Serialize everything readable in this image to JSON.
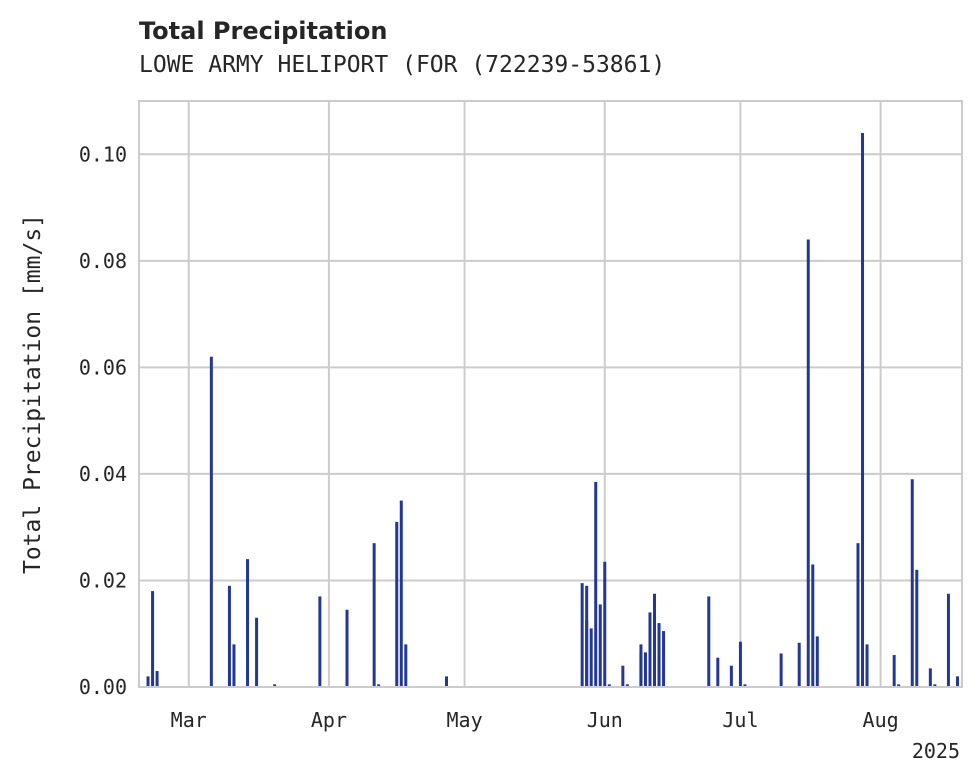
{
  "chart_data": {
    "type": "bar",
    "title": "Total Precipitation",
    "subtitle": "LOWE ARMY HELIPORT (FOR (722239-53861)",
    "ylabel": "Total Precipitation [mm/s]",
    "xlabel": "",
    "year_label": "2025",
    "ylim": [
      0,
      0.11
    ],
    "yticks": [
      0.0,
      0.02,
      0.04,
      0.06,
      0.08,
      0.1
    ],
    "ytick_labels": [
      "0.00",
      "0.02",
      "0.04",
      "0.06",
      "0.08",
      "0.10"
    ],
    "xlim": [
      "2025-02-18",
      "2025-08-19"
    ],
    "xticks": [
      "2025-03-01",
      "2025-04-01",
      "2025-05-01",
      "2025-06-01",
      "2025-07-01",
      "2025-08-01"
    ],
    "xtick_labels": [
      "Mar",
      "Apr",
      "May",
      "Jun",
      "Jul",
      "Aug"
    ],
    "grid": true,
    "bar_color": "#233895",
    "x": [
      "2025-02-20",
      "2025-02-21",
      "2025-02-22",
      "2025-03-06",
      "2025-03-10",
      "2025-03-11",
      "2025-03-14",
      "2025-03-16",
      "2025-03-20",
      "2025-03-30",
      "2025-04-05",
      "2025-04-11",
      "2025-04-12",
      "2025-04-16",
      "2025-04-17",
      "2025-04-18",
      "2025-04-27",
      "2025-05-28",
      "2025-06-05",
      "2025-06-06",
      "2025-06-09",
      "2025-06-10",
      "2025-06-11",
      "2025-06-12",
      "2025-06-13",
      "2025-05-27",
      "2025-05-28",
      "2025-05-29",
      "2025-05-30",
      "2025-05-31",
      "2025-06-01",
      "2025-06-02",
      "2025-06-09",
      "2025-06-13",
      "2025-06-14",
      "2025-06-24",
      "2025-06-26",
      "2025-06-29",
      "2025-07-01",
      "2025-07-02",
      "2025-07-10",
      "2025-07-14",
      "2025-07-16",
      "2025-07-17",
      "2025-07-18",
      "2025-07-27",
      "2025-07-28",
      "2025-07-29",
      "2025-08-04",
      "2025-08-05",
      "2025-08-08",
      "2025-08-09",
      "2025-08-12",
      "2025-08-13",
      "2025-08-16",
      "2025-08-18"
    ],
    "values": [
      0.002,
      0.018,
      0.003,
      0.062,
      0.019,
      0.008,
      0.024,
      0.013,
      0.0005,
      0.017,
      0.0145,
      0.027,
      0.0005,
      0.031,
      0.035,
      0.008,
      0.002,
      0.019,
      0.004,
      0.0005,
      0.008,
      0.0065,
      0.014,
      0.0175,
      0.012,
      0.0195,
      0.0125,
      0.011,
      0.0385,
      0.0155,
      0.0235,
      0.0005,
      0.0063,
      0.0055,
      0.0105,
      0.017,
      0.0055,
      0.004,
      0.0085,
      0.0005,
      0.0063,
      0.0083,
      0.084,
      0.023,
      0.0095,
      0.027,
      0.104,
      0.008,
      0.006,
      0.0005,
      0.039,
      0.022,
      0.0035,
      0.0005,
      0.0175,
      0.002
    ]
  }
}
